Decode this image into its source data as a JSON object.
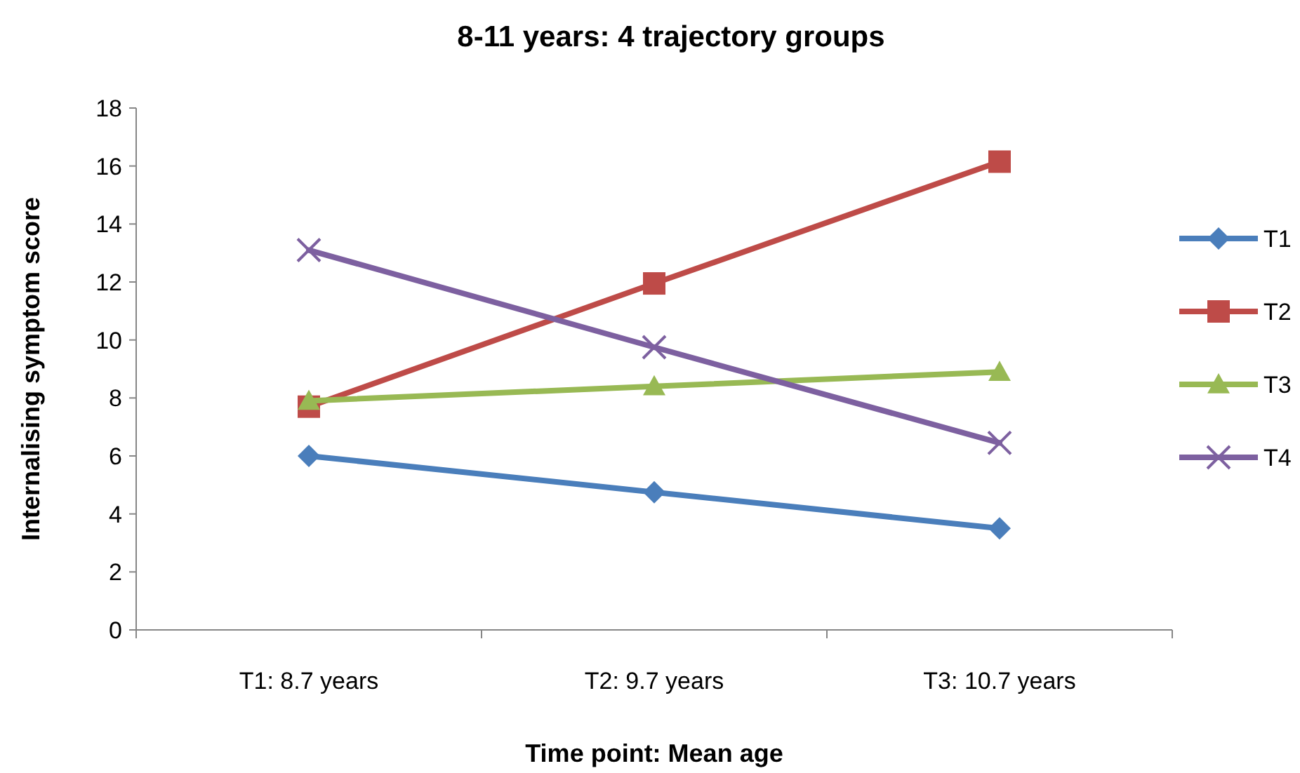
{
  "chart_data": {
    "type": "line",
    "title": "8-11 years: 4 trajectory groups",
    "xlabel": "Time point: Mean age",
    "ylabel": "Internalising symptom score",
    "categories": [
      "T1: 8.7 years",
      "T2: 9.7 years",
      "T3: 10.7 years"
    ],
    "ylim": [
      0,
      18
    ],
    "yticks": [
      0,
      2,
      4,
      6,
      8,
      10,
      12,
      14,
      16,
      18
    ],
    "grid": false,
    "legend": "right",
    "series": [
      {
        "name": "T1",
        "color": "#4a7ebb",
        "marker": "diamond",
        "values": [
          6.0,
          4.75,
          3.5
        ]
      },
      {
        "name": "T2",
        "color": "#be4b48",
        "marker": "square",
        "values": [
          7.7,
          11.95,
          16.15
        ]
      },
      {
        "name": "T3",
        "color": "#98b954",
        "marker": "triangle",
        "values": [
          7.9,
          8.4,
          8.9
        ]
      },
      {
        "name": "T4",
        "color": "#7d60a0",
        "marker": "cross",
        "values": [
          13.1,
          9.75,
          6.45
        ]
      }
    ]
  }
}
